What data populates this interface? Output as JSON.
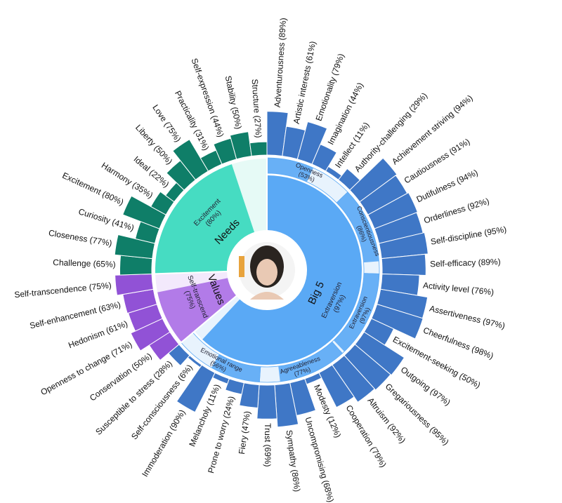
{
  "chart_data": {
    "type": "sunburst",
    "groups": [
      {
        "name": "Big 5",
        "top_trait": "Extraversion",
        "top_label": "(97%)",
        "top_value": 97,
        "color": "#5aa9f5",
        "light": "#e8f3fd",
        "facet_color": "#3f77c6",
        "traits": [
          {
            "name": "Openness",
            "value_label": "(53%)",
            "value": 53,
            "facets": [
              {
                "label": "Adventurousness (89%)",
                "value": 89
              },
              {
                "label": "Artistic interests (61%)",
                "value": 61
              },
              {
                "label": "Emotionality (79%)",
                "value": 79
              },
              {
                "label": "Imagination (44%)",
                "value": 44
              },
              {
                "label": "Intellect (11%)",
                "value": 11
              },
              {
                "label": "Authority-challenging (29%)",
                "value": 29
              }
            ]
          },
          {
            "name": "Conscientiousness",
            "value_label": "(86%)",
            "value": 86,
            "facets": [
              {
                "label": "Achievement striving (94%)",
                "value": 94
              },
              {
                "label": "Cautiousness (91%)",
                "value": 91
              },
              {
                "label": "Dutifulness (94%)",
                "value": 94
              },
              {
                "label": "Orderliness (92%)",
                "value": 92
              },
              {
                "label": "Self-discipline (95%)",
                "value": 95
              },
              {
                "label": "Self-efficacy (89%)",
                "value": 89
              }
            ]
          },
          {
            "name": "Extraversion",
            "value_label": "(97%)",
            "value": 97,
            "facets": [
              {
                "label": "Activity level (76%)",
                "value": 76
              },
              {
                "label": "Assertiveness (97%)",
                "value": 97
              },
              {
                "label": "Cheerfulness (98%)",
                "value": 98
              },
              {
                "label": "Excitement-seeking (50%)",
                "value": 50
              },
              {
                "label": "Outgoing (97%)",
                "value": 97
              },
              {
                "label": "Gregariousness (95%)",
                "value": 95
              }
            ]
          },
          {
            "name": "Agreeableness",
            "value_label": "(77%)",
            "value": 77,
            "facets": [
              {
                "label": "Altruism (92%)",
                "value": 92
              },
              {
                "label": "Cooperation (79%)",
                "value": 79
              },
              {
                "label": "Modesty (12%)",
                "value": 12
              },
              {
                "label": "Uncompromising (68%)",
                "value": 68
              },
              {
                "label": "Sympathy (86%)",
                "value": 86
              },
              {
                "label": "Trust (69%)",
                "value": 69
              }
            ]
          },
          {
            "name": "Emotional range",
            "value_label": "(56%)",
            "value": 56,
            "facets": [
              {
                "label": "Fiery (47%)",
                "value": 47
              },
              {
                "label": "Prone to worry (24%)",
                "value": 24
              },
              {
                "label": "Melancholy (11%)",
                "value": 11
              },
              {
                "label": "Immoderation (90%)",
                "value": 90
              },
              {
                "label": "Self-consciousness (6%)",
                "value": 6
              },
              {
                "label": "Susceptible to stress (28%)",
                "value": 28
              }
            ]
          }
        ]
      },
      {
        "name": "Values",
        "top_trait": "Self-transcend",
        "top_label": "(75%)",
        "top_value": 75,
        "color": "#b27be8",
        "light": "#f3e9fc",
        "facet_color": "#9152d6",
        "facets": [
          {
            "label": "Conservation (50%)",
            "value": 50
          },
          {
            "label": "Openness to change (71%)",
            "value": 71
          },
          {
            "label": "Hedonism (61%)",
            "value": 61
          },
          {
            "label": "Self-enhancement (63%)",
            "value": 63
          },
          {
            "label": "Self-transcendence (75%)",
            "value": 75
          }
        ]
      },
      {
        "name": "Needs",
        "top_trait": "Excitement",
        "top_label": "(80%)",
        "top_value": 80,
        "color": "#46dcc2",
        "light": "#e6faf6",
        "facet_color": "#0f7e68",
        "facets": [
          {
            "label": "Challenge (65%)",
            "value": 65
          },
          {
            "label": "Closeness (77%)",
            "value": 77
          },
          {
            "label": "Curiosity (41%)",
            "value": 41
          },
          {
            "label": "Excitement (80%)",
            "value": 80
          },
          {
            "label": "Harmony (35%)",
            "value": 35
          },
          {
            "label": "Ideal (22%)",
            "value": 22
          },
          {
            "label": "Liberty (50%)",
            "value": 50
          },
          {
            "label": "Love (75%)",
            "value": 75
          },
          {
            "label": "Practicality (31%)",
            "value": 31
          },
          {
            "label": "Self-expression (44%)",
            "value": 44
          },
          {
            "label": "Stability (50%)",
            "value": 50
          },
          {
            "label": "Structure (27%)",
            "value": 27
          }
        ]
      }
    ]
  }
}
